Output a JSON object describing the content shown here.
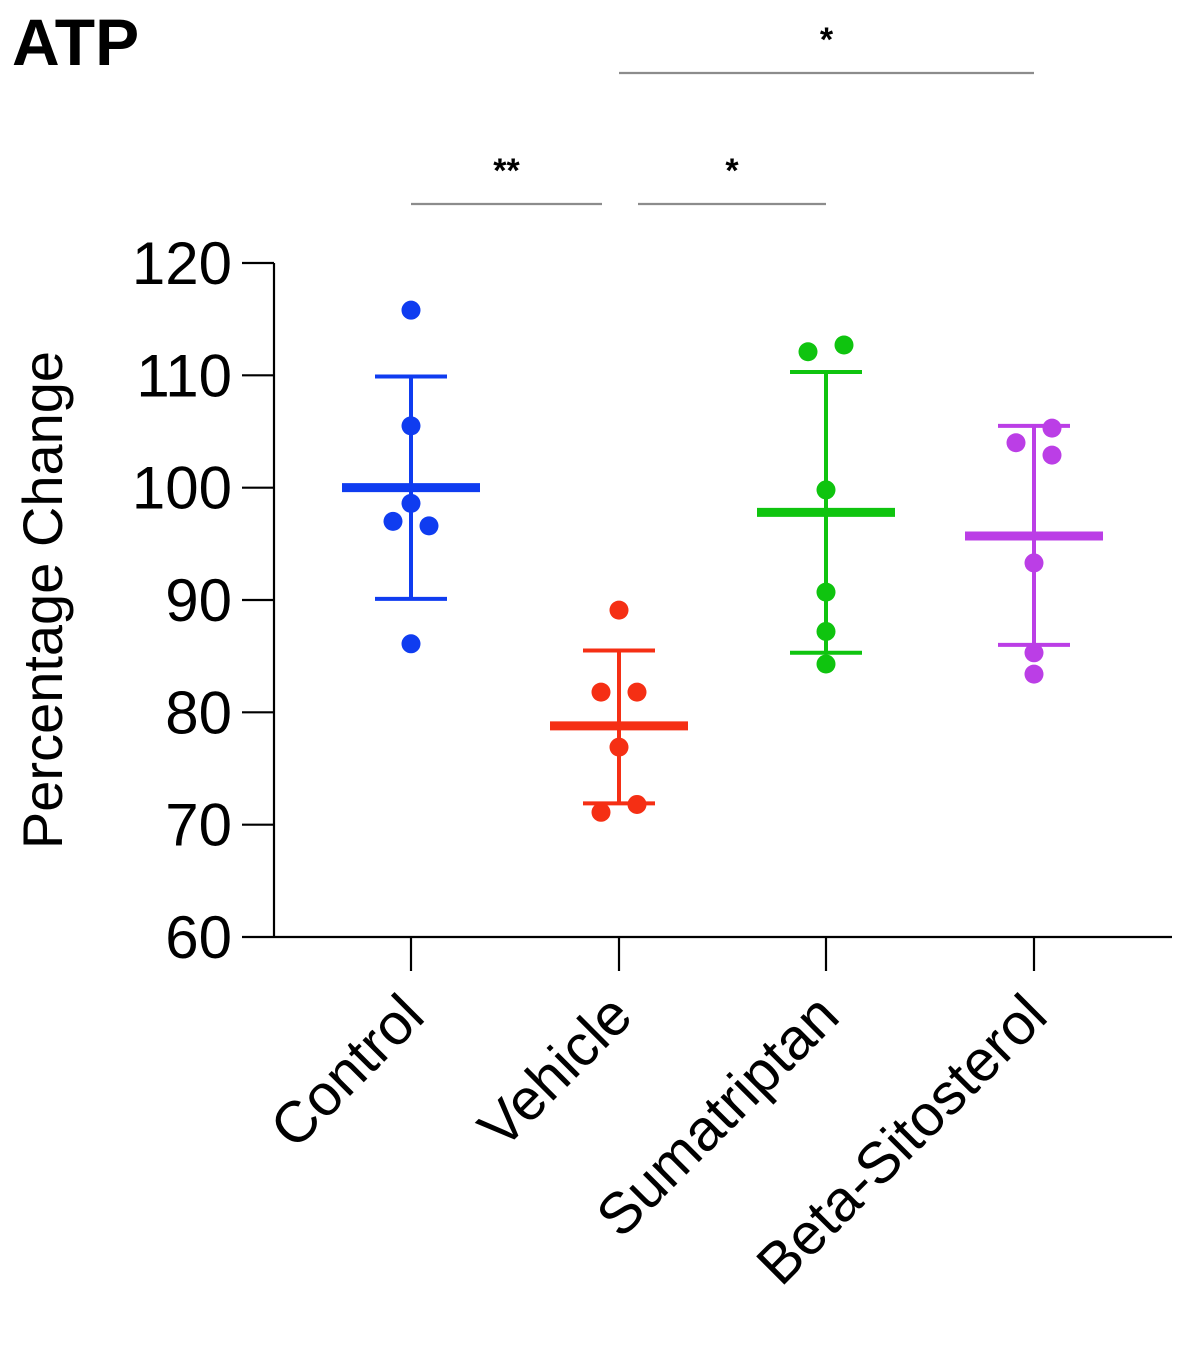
{
  "panel_label": "ATP",
  "chart_data": {
    "type": "scatter",
    "title": "ATP",
    "ylabel": "Percentage Change",
    "xlabel": "",
    "ylim": [
      60,
      120
    ],
    "yticks": [
      60,
      70,
      80,
      90,
      100,
      110,
      120
    ],
    "categories": [
      "Control",
      "Vehicle",
      "Sumatriptan",
      "Beta-Sitosterol"
    ],
    "grid": false,
    "legend": "none",
    "series": [
      {
        "category": "Control",
        "color": "#0f3cf0",
        "points": [
          115.8,
          105.5,
          98.6,
          97.0,
          96.6,
          86.1
        ],
        "mean": 100.0,
        "sd_upper": 109.9,
        "sd_lower": 90.1
      },
      {
        "category": "Vehicle",
        "color": "#f52f14",
        "points": [
          89.1,
          81.8,
          81.8,
          76.9,
          71.1,
          71.8
        ],
        "mean": 78.8,
        "sd_upper": 85.5,
        "sd_lower": 71.9
      },
      {
        "category": "Sumatriptan",
        "color": "#0fc40f",
        "points": [
          112.1,
          112.7,
          99.8,
          90.7,
          87.2,
          84.3
        ],
        "mean": 97.8,
        "sd_upper": 110.3,
        "sd_lower": 85.3
      },
      {
        "category": "Beta-Sitosterol",
        "color": "#bb3ee6",
        "points": [
          105.3,
          104.0,
          102.9,
          93.3,
          85.3,
          83.4
        ],
        "mean": 95.7,
        "sd_upper": 105.5,
        "sd_lower": 86.0
      }
    ],
    "significance": [
      {
        "from": "Control",
        "to": "Vehicle",
        "label": "**"
      },
      {
        "from": "Vehicle",
        "to": "Sumatriptan",
        "label": "*"
      },
      {
        "from": "Vehicle",
        "to": "Beta-Sitosterol",
        "label": "*"
      }
    ]
  }
}
